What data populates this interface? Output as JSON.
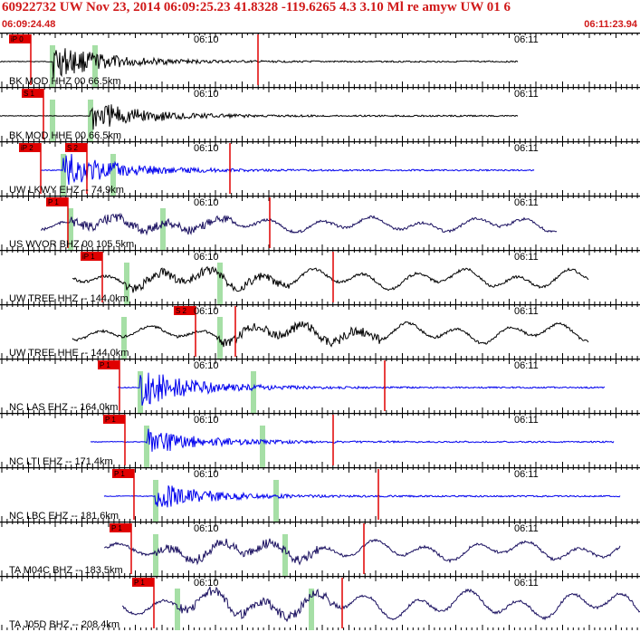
{
  "header": {
    "title": "60922732 UW Nov 23, 2014 06:09:25.23   41.8328 -119.6265  4.3 3.10 Ml re amyw UW 01   6",
    "start_time": "06:09:24.48",
    "end_time": "06:11:23.94"
  },
  "tick_labels": {
    "t1": "06:10",
    "t2": "06:11"
  },
  "colors": {
    "text_red": "#d01a1a",
    "pick_red": "#e00000",
    "trace_black": "#000000",
    "trace_blue": "#0000ee",
    "trace_purple": "#1a1060",
    "marker_green": "#a6dfa6"
  },
  "traces": [
    {
      "label": "BK MOD HHZ 00 66.5km",
      "color": "black",
      "picks": [
        "iP 0",
        ""
      ]
    },
    {
      "label": "BK MOD HHE 00 66.5km",
      "color": "black",
      "picks": [
        "S 1"
      ]
    },
    {
      "label": "UW LKWY EHZ -- 74.9km",
      "color": "blue",
      "picks": [
        "iP 2",
        "S 2"
      ]
    },
    {
      "label": "US WVOR BHZ 00 105.5km",
      "color": "purple",
      "picks": [
        "P 1"
      ]
    },
    {
      "label": "UW TREE HHZ -- 144.0km",
      "color": "black",
      "picks": [
        "iP 1"
      ]
    },
    {
      "label": "UW TREE HHE -- 144.0km",
      "color": "black",
      "picks": [
        "S 2"
      ]
    },
    {
      "label": "NC LAS EHZ -- 164.0km",
      "color": "blue",
      "picks": [
        "P 1"
      ]
    },
    {
      "label": "NC LTI EHZ -- 171.4km",
      "color": "blue",
      "picks": [
        "P 1"
      ]
    },
    {
      "label": "NC LBC EHZ -- 181.6km",
      "color": "blue",
      "picks": [
        "P 1"
      ]
    },
    {
      "label": "TA M04C BHZ -- 183.5km",
      "color": "purple",
      "picks": [
        "P 1"
      ]
    },
    {
      "label": "TA J05D BHZ -- 208.4km",
      "color": "purple",
      "picks": [
        "P 1"
      ]
    }
  ]
}
